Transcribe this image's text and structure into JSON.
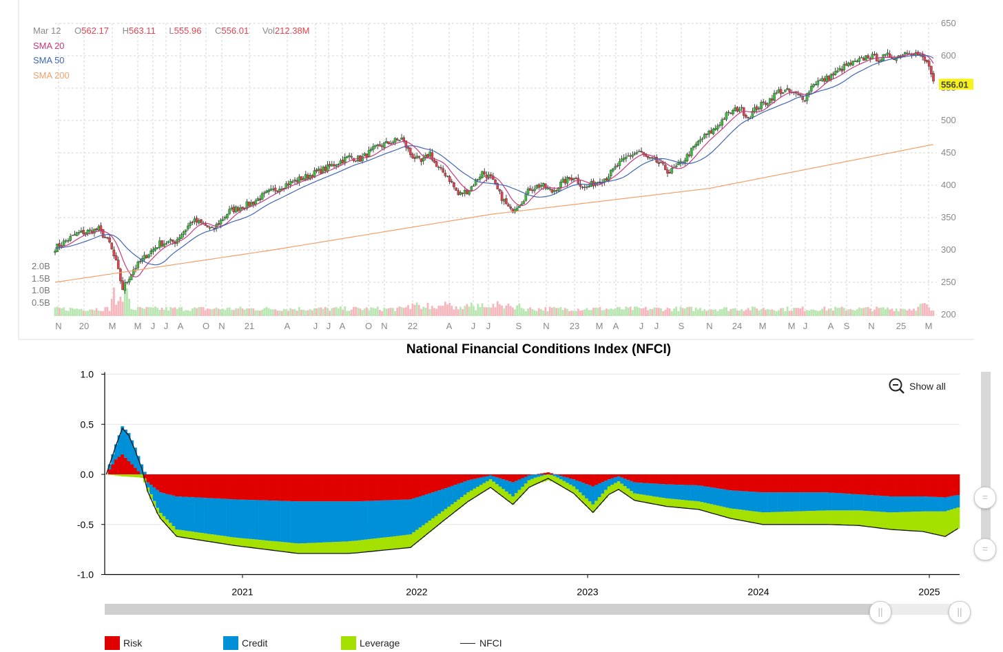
{
  "top_chart": {
    "legend": {
      "date": "Mar 12",
      "open_label": "O",
      "open": "562.17",
      "high_label": "H",
      "high": "563.11",
      "low_label": "L",
      "low": "555.96",
      "close_label": "C",
      "close": "556.01",
      "vol_label": "Vol",
      "vol": "212.38M",
      "sma20": "SMA 20",
      "sma50": "SMA 50",
      "sma200": "SMA 200"
    },
    "last_price_badge": "556.01",
    "colors": {
      "up": "#3fba3f",
      "down": "#e0434f",
      "sma20": "#c8377a",
      "sma50": "#3e65b5",
      "sma200": "#f2a06a",
      "grid": "#d6d6d6",
      "badge": "#f7f21b",
      "vol_up": "#b8e6b0",
      "vol_down": "#f6b6bd"
    }
  },
  "chart_data": [
    {
      "type": "candlestick",
      "title": "",
      "price_axis": {
        "ticks": [
          650,
          600,
          550,
          500,
          450,
          400,
          350,
          300,
          250,
          200
        ],
        "ylim": [
          200,
          650
        ]
      },
      "volume_axis": {
        "ticks": [
          "2.0B",
          "1.5B",
          "1.0B",
          "0.5B"
        ]
      },
      "x_tick_labels": [
        "N",
        "20",
        "M",
        "M",
        "J",
        "J",
        "A",
        "O",
        "N",
        "21",
        "A",
        "J",
        "J",
        "A",
        "O",
        "N",
        "22",
        "A",
        "J",
        "J",
        "S",
        "N",
        "23",
        "M",
        "A",
        "J",
        "J",
        "S",
        "N",
        "24",
        "M",
        "M",
        "J",
        "A",
        "S",
        "N",
        "25",
        "M"
      ],
      "close_path": [
        {
          "t": 0,
          "v": 303
        },
        {
          "t": 10,
          "v": 325
        },
        {
          "t": 20,
          "v": 332
        },
        {
          "t": 25,
          "v": 310
        },
        {
          "t": 28,
          "v": 280
        },
        {
          "t": 31,
          "v": 240
        },
        {
          "t": 36,
          "v": 270
        },
        {
          "t": 42,
          "v": 292
        },
        {
          "t": 48,
          "v": 310
        },
        {
          "t": 55,
          "v": 313
        },
        {
          "t": 63,
          "v": 345
        },
        {
          "t": 68,
          "v": 340
        },
        {
          "t": 72,
          "v": 330
        },
        {
          "t": 80,
          "v": 360
        },
        {
          "t": 90,
          "v": 372
        },
        {
          "t": 97,
          "v": 387
        },
        {
          "t": 105,
          "v": 400
        },
        {
          "t": 115,
          "v": 413
        },
        {
          "t": 125,
          "v": 427
        },
        {
          "t": 135,
          "v": 444
        },
        {
          "t": 140,
          "v": 440
        },
        {
          "t": 148,
          "v": 460
        },
        {
          "t": 153,
          "v": 465
        },
        {
          "t": 159,
          "v": 472
        },
        {
          "t": 163,
          "v": 448
        },
        {
          "t": 168,
          "v": 435
        },
        {
          "t": 172,
          "v": 450
        },
        {
          "t": 175,
          "v": 428
        },
        {
          "t": 180,
          "v": 415
        },
        {
          "t": 185,
          "v": 385
        },
        {
          "t": 190,
          "v": 393
        },
        {
          "t": 196,
          "v": 420
        },
        {
          "t": 200,
          "v": 411
        },
        {
          "t": 204,
          "v": 386
        },
        {
          "t": 209,
          "v": 360
        },
        {
          "t": 214,
          "v": 375
        },
        {
          "t": 218,
          "v": 395
        },
        {
          "t": 223,
          "v": 400
        },
        {
          "t": 228,
          "v": 390
        },
        {
          "t": 233,
          "v": 405
        },
        {
          "t": 238,
          "v": 413
        },
        {
          "t": 243,
          "v": 395
        },
        {
          "t": 248,
          "v": 405
        },
        {
          "t": 253,
          "v": 412
        },
        {
          "t": 258,
          "v": 430
        },
        {
          "t": 263,
          "v": 445
        },
        {
          "t": 268,
          "v": 452
        },
        {
          "t": 272,
          "v": 440
        },
        {
          "t": 276,
          "v": 436
        },
        {
          "t": 282,
          "v": 420
        },
        {
          "t": 286,
          "v": 430
        },
        {
          "t": 290,
          "v": 445
        },
        {
          "t": 296,
          "v": 470
        },
        {
          "t": 302,
          "v": 485
        },
        {
          "t": 308,
          "v": 508
        },
        {
          "t": 314,
          "v": 520
        },
        {
          "t": 318,
          "v": 505
        },
        {
          "t": 322,
          "v": 520
        },
        {
          "t": 327,
          "v": 530
        },
        {
          "t": 332,
          "v": 545
        },
        {
          "t": 336,
          "v": 545
        },
        {
          "t": 340,
          "v": 540
        },
        {
          "t": 344,
          "v": 535
        },
        {
          "t": 348,
          "v": 558
        },
        {
          "t": 353,
          "v": 563
        },
        {
          "t": 358,
          "v": 573
        },
        {
          "t": 363,
          "v": 585
        },
        {
          "t": 368,
          "v": 590
        },
        {
          "t": 373,
          "v": 600
        },
        {
          "t": 378,
          "v": 595
        },
        {
          "t": 382,
          "v": 600
        },
        {
          "t": 386,
          "v": 598
        },
        {
          "t": 391,
          "v": 607
        },
        {
          "t": 395,
          "v": 604
        },
        {
          "t": 398,
          "v": 596
        },
        {
          "t": 401,
          "v": 585
        },
        {
          "t": 403,
          "v": 556
        }
      ],
      "series": [
        {
          "name": "SMA 20",
          "lag": 4
        },
        {
          "name": "SMA 50",
          "lag": 10
        },
        {
          "name": "SMA 200",
          "points": [
            {
              "t": 0,
              "v": 250
            },
            {
              "t": 100,
              "v": 300
            },
            {
              "t": 200,
              "v": 355
            },
            {
              "t": 300,
              "v": 395
            },
            {
              "t": 403,
              "v": 463
            }
          ]
        }
      ]
    },
    {
      "type": "area",
      "title": "National Financial Conditions Index (NFCI)",
      "xlabel": "",
      "ylabel": "",
      "ylim": [
        -1.0,
        1.0
      ],
      "y_ticks": [
        "1.0",
        "0.5",
        "0.0",
        "-0.5",
        "-1.0"
      ],
      "x_ticks": [
        "2021",
        "2022",
        "2023",
        "2024",
        "2025"
      ],
      "start": "2020-03",
      "weeks_per_year": 52,
      "legend": [
        "Risk",
        "Credit",
        "Leverage",
        "NFCI"
      ],
      "colors": {
        "Risk": "#e00000",
        "Credit": "#0090d8",
        "Leverage": "#a4e000",
        "NFCI": "#111111"
      },
      "series": [
        {
          "name": "Risk",
          "points": [
            [
              0,
              0.0
            ],
            [
              3,
              0.15
            ],
            [
              5,
              0.2
            ],
            [
              8,
              0.1
            ],
            [
              11,
              0.0
            ],
            [
              13,
              -0.08
            ],
            [
              17,
              -0.18
            ],
            [
              22,
              -0.22
            ],
            [
              40,
              -0.25
            ],
            [
              60,
              -0.27
            ],
            [
              78,
              -0.27
            ],
            [
              95,
              -0.25
            ],
            [
              105,
              -0.15
            ],
            [
              113,
              -0.06
            ],
            [
              120,
              -0.01
            ],
            [
              127,
              -0.08
            ],
            [
              132,
              -0.01
            ],
            [
              138,
              0.02
            ],
            [
              146,
              -0.05
            ],
            [
              152,
              -0.12
            ],
            [
              157,
              -0.05
            ],
            [
              160,
              -0.02
            ],
            [
              165,
              -0.08
            ],
            [
              175,
              -0.1
            ],
            [
              185,
              -0.11
            ],
            [
              195,
              -0.16
            ],
            [
              205,
              -0.18
            ],
            [
              215,
              -0.18
            ],
            [
              225,
              -0.18
            ],
            [
              235,
              -0.2
            ],
            [
              245,
              -0.22
            ],
            [
              255,
              -0.22
            ],
            [
              262,
              -0.23
            ],
            [
              267,
              -0.2
            ]
          ]
        },
        {
          "name": "Credit",
          "points": [
            [
              0,
              0.0
            ],
            [
              3,
              0.15
            ],
            [
              5,
              0.28
            ],
            [
              7,
              0.28
            ],
            [
              9,
              0.2
            ],
            [
              11,
              0.1
            ],
            [
              13,
              -0.05
            ],
            [
              16,
              -0.18
            ],
            [
              22,
              -0.33
            ],
            [
              40,
              -0.38
            ],
            [
              60,
              -0.42
            ],
            [
              75,
              -0.4
            ],
            [
              95,
              -0.35
            ],
            [
              105,
              -0.22
            ],
            [
              113,
              -0.12
            ],
            [
              120,
              -0.04
            ],
            [
              127,
              -0.14
            ],
            [
              132,
              -0.05
            ],
            [
              138,
              0.0
            ],
            [
              146,
              -0.07
            ],
            [
              152,
              -0.18
            ],
            [
              157,
              -0.07
            ],
            [
              160,
              -0.05
            ],
            [
              165,
              -0.11
            ],
            [
              175,
              -0.14
            ],
            [
              185,
              -0.16
            ],
            [
              195,
              -0.18
            ],
            [
              205,
              -0.2
            ],
            [
              215,
              -0.19
            ],
            [
              225,
              -0.18
            ],
            [
              235,
              -0.16
            ],
            [
              245,
              -0.16
            ],
            [
              255,
              -0.15
            ],
            [
              262,
              -0.14
            ],
            [
              267,
              -0.12
            ]
          ]
        },
        {
          "name": "Leverage",
          "points": [
            [
              0,
              0.0
            ],
            [
              5,
              -0.02
            ],
            [
              10,
              -0.03
            ],
            [
              14,
              -0.05
            ],
            [
              22,
              -0.07
            ],
            [
              40,
              -0.08
            ],
            [
              60,
              -0.1
            ],
            [
              75,
              -0.12
            ],
            [
              95,
              -0.13
            ],
            [
              105,
              -0.1
            ],
            [
              113,
              -0.09
            ],
            [
              120,
              -0.08
            ],
            [
              127,
              -0.08
            ],
            [
              132,
              -0.07
            ],
            [
              138,
              -0.06
            ],
            [
              146,
              -0.07
            ],
            [
              152,
              -0.08
            ],
            [
              157,
              -0.08
            ],
            [
              160,
              -0.08
            ],
            [
              165,
              -0.07
            ],
            [
              175,
              -0.08
            ],
            [
              185,
              -0.08
            ],
            [
              195,
              -0.1
            ],
            [
              205,
              -0.12
            ],
            [
              215,
              -0.13
            ],
            [
              225,
              -0.14
            ],
            [
              235,
              -0.15
            ],
            [
              245,
              -0.17
            ],
            [
              255,
              -0.2
            ],
            [
              262,
              -0.25
            ],
            [
              267,
              -0.2
            ]
          ]
        }
      ]
    }
  ],
  "controls": {
    "show_all": "Show all"
  },
  "legend_items": [
    "Risk",
    "Credit",
    "Leverage",
    "NFCI"
  ]
}
